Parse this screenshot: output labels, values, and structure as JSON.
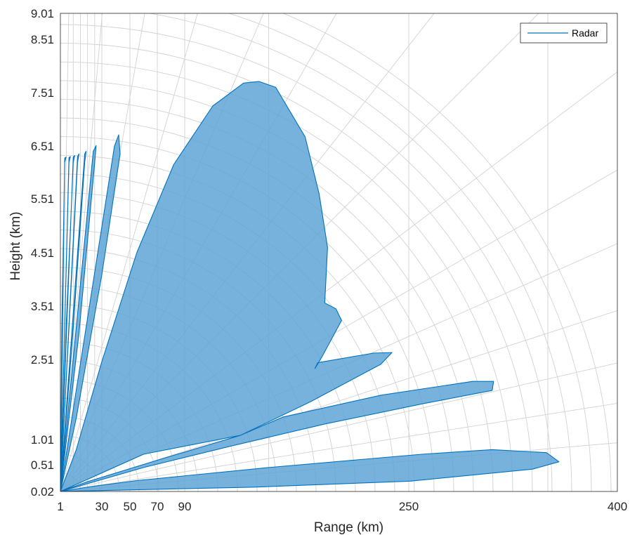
{
  "chart_data": {
    "type": "area",
    "xlabel": "Range (km)",
    "ylabel": "Height (km)",
    "xlim": [
      1,
      400
    ],
    "ylim": [
      0.02,
      9.01
    ],
    "x_ticks": [
      1,
      30,
      50,
      70,
      90,
      250,
      400
    ],
    "x_tick_labels": [
      "1",
      "30",
      "50",
      "70",
      "90",
      "250",
      "400"
    ],
    "y_ticks": [
      0.02,
      0.51,
      1.01,
      2.51,
      3.51,
      4.51,
      5.51,
      6.51,
      7.51,
      8.51,
      9.01
    ],
    "y_tick_labels": [
      "0.02",
      "0.51",
      "1.01",
      "2.51",
      "3.51",
      "4.51",
      "5.51",
      "6.51",
      "7.51",
      "8.51",
      "9.01"
    ],
    "grid": true,
    "legend": {
      "position": "top-right",
      "entries": [
        "Radar"
      ]
    },
    "series": [
      {
        "name": "Radar",
        "color": "#0072BD",
        "fill": "#5FA4D6",
        "lobes": [
          {
            "points": [
              [
                1,
                0.02
              ],
              [
                140,
                0.1
              ],
              [
                251,
                0.21
              ],
              [
                339,
                0.43
              ],
              [
                358,
                0.57
              ],
              [
                349,
                0.75
              ],
              [
                310,
                0.81
              ],
              [
                260,
                0.72
              ],
              [
                150,
                0.46
              ],
              [
                55,
                0.22
              ],
              [
                20,
                0.1
              ],
              [
                1,
                0.02
              ]
            ]
          },
          {
            "points": [
              [
                1,
                0.02
              ],
              [
                60,
                0.46
              ],
              [
                120,
                0.86
              ],
              [
                190,
                1.3
              ],
              [
                260,
                1.68
              ],
              [
                310,
                1.93
              ],
              [
                311,
                2.1
              ],
              [
                296,
                2.1
              ],
              [
                230,
                1.84
              ],
              [
                160,
                1.43
              ],
              [
                130,
                1.09
              ],
              [
                70,
                0.6
              ],
              [
                20,
                0.2
              ],
              [
                1,
                0.02
              ]
            ]
          },
          {
            "points": [
              [
                1,
                0.02
              ],
              [
                60,
                0.72
              ],
              [
                130,
                1.09
              ],
              [
                180,
                1.72
              ],
              [
                230,
                2.42
              ],
              [
                238,
                2.64
              ],
              [
                225,
                2.63
              ],
              [
                185,
                2.45
              ],
              [
                183,
                2.34
              ],
              [
                188,
                2.56
              ],
              [
                202,
                3.24
              ],
              [
                198,
                3.46
              ],
              [
                190,
                3.57
              ],
              [
                192,
                4.61
              ],
              [
                186,
                5.6
              ],
              [
                176,
                6.68
              ],
              [
                155,
                7.61
              ],
              [
                143,
                7.72
              ],
              [
                132,
                7.69
              ],
              [
                110,
                7.26
              ],
              [
                82,
                6.16
              ],
              [
                55,
                4.51
              ],
              [
                30,
                2.47
              ],
              [
                12,
                0.8
              ],
              [
                1,
                0.02
              ]
            ]
          },
          {
            "points": [
              [
                1,
                0.02
              ],
              [
                39,
                6.51
              ],
              [
                42,
                6.72
              ],
              [
                43,
                6.36
              ],
              [
                30,
                4.1
              ],
              [
                12,
                1.4
              ],
              [
                1,
                0.02
              ]
            ]
          },
          {
            "points": [
              [
                1,
                0.02
              ],
              [
                24,
                6.41
              ],
              [
                26,
                6.52
              ],
              [
                25,
                6.19
              ],
              [
                14,
                3.0
              ],
              [
                1,
                0.02
              ]
            ]
          },
          {
            "points": [
              [
                1,
                0.02
              ],
              [
                18,
                6.36
              ],
              [
                19,
                6.41
              ],
              [
                18,
                6.2
              ],
              [
                10,
                3.1
              ],
              [
                1,
                0.02
              ]
            ]
          },
          {
            "points": [
              [
                1,
                0.02
              ],
              [
                13,
                6.31
              ],
              [
                14,
                6.36
              ],
              [
                13,
                6.2
              ],
              [
                7,
                3.1
              ],
              [
                1,
                0.02
              ]
            ]
          },
          {
            "points": [
              [
                1,
                0.02
              ],
              [
                10,
                6.3
              ],
              [
                11,
                6.33
              ],
              [
                10,
                6.2
              ],
              [
                5,
                3.1
              ],
              [
                1,
                0.02
              ]
            ]
          },
          {
            "points": [
              [
                1,
                0.02
              ],
              [
                7,
                6.29
              ],
              [
                8,
                6.31
              ],
              [
                7,
                6.2
              ],
              [
                4,
                3.1
              ],
              [
                1,
                0.02
              ]
            ]
          },
          {
            "points": [
              [
                1,
                0.02
              ],
              [
                4,
                6.28
              ],
              [
                5,
                6.3
              ],
              [
                4,
                6.2
              ],
              [
                2,
                3.1
              ],
              [
                1,
                0.02
              ]
            ]
          }
        ]
      }
    ]
  }
}
